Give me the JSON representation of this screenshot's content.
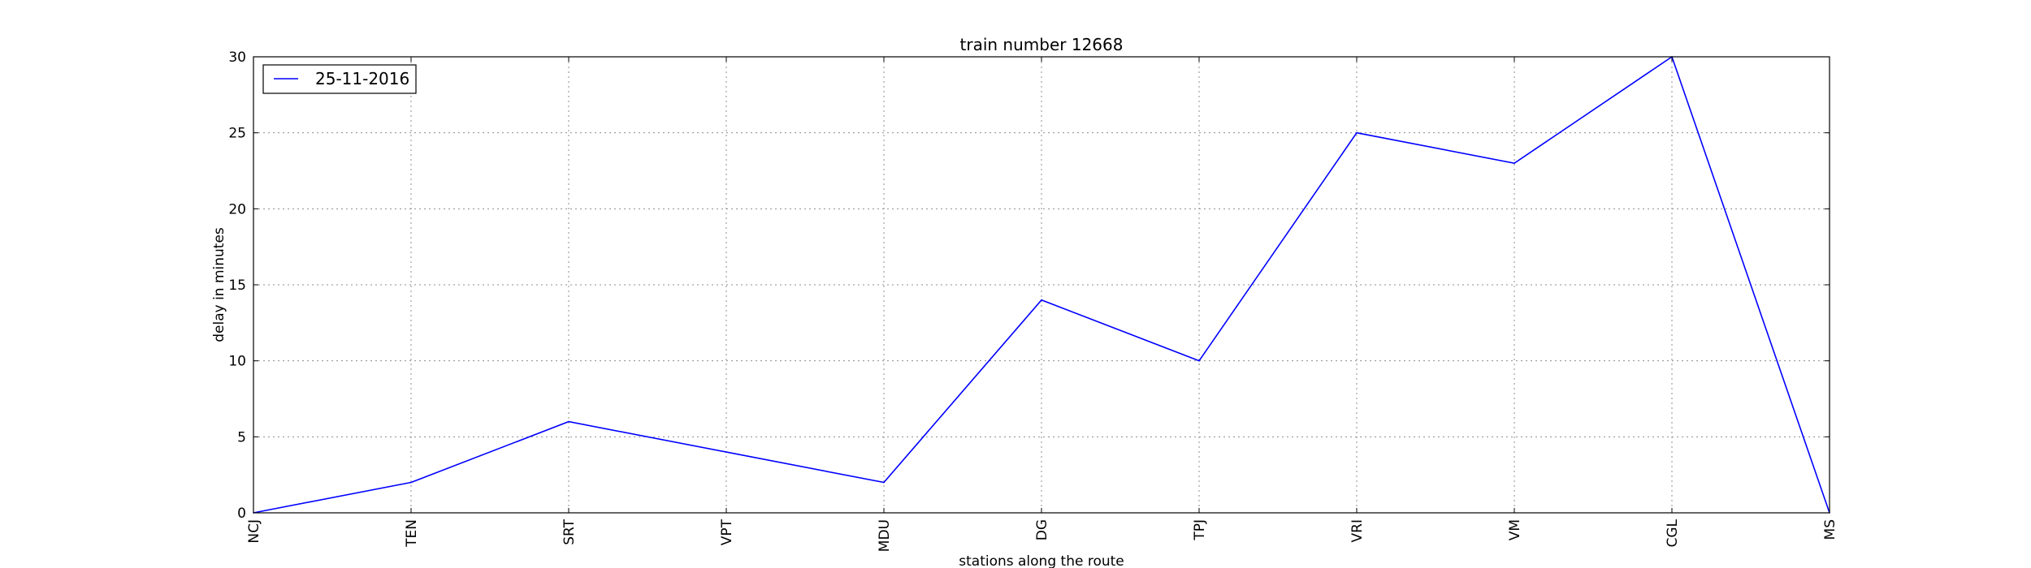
{
  "chart_data": {
    "type": "line",
    "title": "train number 12668",
    "xlabel": "stations along the route",
    "ylabel": "delay in minutes",
    "categories": [
      "NCJ",
      "TEN",
      "SRT",
      "VPT",
      "MDU",
      "DG",
      "TPJ",
      "VRI",
      "VM",
      "CGL",
      "MS"
    ],
    "series": [
      {
        "name": "25-11-2016",
        "color": "#0000ff",
        "values": [
          0,
          2,
          6,
          4,
          2,
          14,
          10,
          25,
          23,
          30,
          0
        ]
      }
    ],
    "ylim": [
      0,
      30
    ],
    "yticks": [
      0,
      5,
      10,
      15,
      20,
      25,
      30
    ],
    "grid": true,
    "legend_position": "top-left"
  }
}
